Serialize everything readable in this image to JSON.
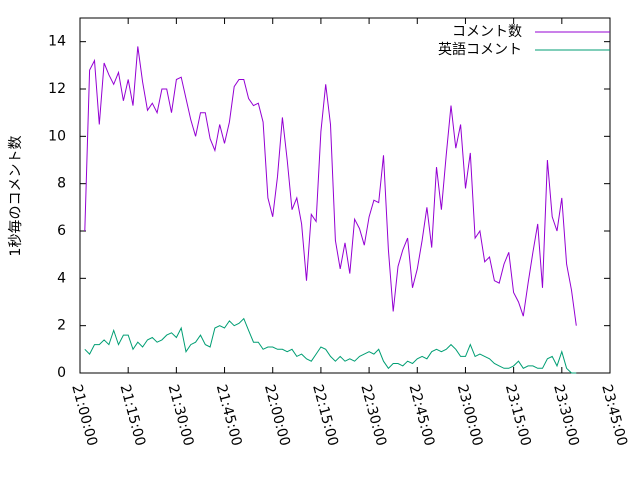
{
  "chart_data": {
    "type": "line",
    "ylabel": "1秒毎のコメント数",
    "x": [
      "21:01:30",
      "21:03:00",
      "21:04:30",
      "21:06:00",
      "21:07:30",
      "21:09:00",
      "21:10:30",
      "21:12:00",
      "21:13:30",
      "21:15:00",
      "21:16:30",
      "21:18:00",
      "21:19:30",
      "21:21:00",
      "21:22:30",
      "21:24:00",
      "21:25:30",
      "21:27:00",
      "21:28:30",
      "21:30:00",
      "21:31:30",
      "21:33:00",
      "21:34:30",
      "21:36:00",
      "21:37:30",
      "21:39:00",
      "21:40:30",
      "21:42:00",
      "21:43:30",
      "21:45:00",
      "21:46:30",
      "21:48:00",
      "21:49:30",
      "21:51:00",
      "21:52:30",
      "21:54:00",
      "21:55:30",
      "21:57:00",
      "21:58:30",
      "22:00:00",
      "22:01:30",
      "22:03:00",
      "22:04:30",
      "22:06:00",
      "22:07:30",
      "22:09:00",
      "22:10:30",
      "22:12:00",
      "22:13:30",
      "22:15:00",
      "22:16:30",
      "22:18:00",
      "22:19:30",
      "22:21:00",
      "22:22:30",
      "22:24:00",
      "22:25:30",
      "22:27:00",
      "22:28:30",
      "22:30:00",
      "22:31:30",
      "22:33:00",
      "22:34:30",
      "22:36:00",
      "22:37:30",
      "22:39:00",
      "22:40:30",
      "22:42:00",
      "22:43:30",
      "22:45:00",
      "22:46:30",
      "22:48:00",
      "22:49:30",
      "22:51:00",
      "22:52:30",
      "22:54:00",
      "22:55:30",
      "22:57:00",
      "22:58:30",
      "23:00:00",
      "23:01:30",
      "23:03:00",
      "23:04:30",
      "23:06:00",
      "23:07:30",
      "23:09:00",
      "23:10:30",
      "23:12:00",
      "23:13:30",
      "23:15:00",
      "23:16:30",
      "23:18:00",
      "23:19:30",
      "23:21:00",
      "23:22:30",
      "23:24:00",
      "23:25:30",
      "23:27:00",
      "23:28:30",
      "23:30:00",
      "23:31:30",
      "23:33:00",
      "23:34:30"
    ],
    "series": [
      {
        "name": "コメント数",
        "color": "#9400d3",
        "values": [
          6.0,
          12.8,
          13.2,
          10.5,
          13.1,
          12.6,
          12.2,
          12.7,
          11.5,
          12.4,
          11.3,
          13.8,
          12.3,
          11.1,
          11.4,
          11.0,
          12.0,
          12.0,
          11.0,
          12.4,
          12.5,
          11.6,
          10.7,
          10.0,
          11.0,
          11.0,
          9.9,
          9.4,
          10.5,
          9.7,
          10.6,
          12.1,
          12.4,
          12.4,
          11.6,
          11.3,
          11.4,
          10.6,
          7.4,
          6.6,
          8.3,
          10.8,
          9.0,
          6.9,
          7.4,
          6.3,
          3.9,
          6.7,
          6.4,
          10.2,
          12.2,
          10.5,
          5.6,
          4.4,
          5.5,
          4.2,
          6.5,
          6.1,
          5.4,
          6.6,
          7.3,
          7.2,
          9.2,
          5.2,
          2.6,
          4.5,
          5.2,
          5.7,
          3.6,
          4.4,
          5.6,
          7.0,
          5.3,
          8.7,
          6.9,
          9.2,
          11.3,
          9.5,
          10.5,
          7.8,
          9.3,
          5.7,
          6.0,
          4.7,
          4.9,
          3.9,
          3.8,
          4.6,
          5.1,
          3.4,
          3.0,
          2.4,
          3.8,
          5.1,
          6.3,
          3.6,
          9.0,
          6.6,
          6.0,
          7.4,
          4.6,
          3.5,
          2.0
        ]
      },
      {
        "name": "英語コメント",
        "color": "#009e73",
        "values": [
          1.0,
          0.8,
          1.2,
          1.2,
          1.4,
          1.2,
          1.8,
          1.2,
          1.6,
          1.6,
          1.0,
          1.3,
          1.1,
          1.4,
          1.5,
          1.3,
          1.4,
          1.6,
          1.7,
          1.5,
          1.9,
          0.9,
          1.2,
          1.3,
          1.6,
          1.2,
          1.1,
          1.9,
          2.0,
          1.9,
          2.2,
          2.0,
          2.1,
          2.3,
          1.8,
          1.3,
          1.3,
          1.0,
          1.1,
          1.1,
          1.0,
          1.0,
          0.9,
          1.0,
          0.7,
          0.8,
          0.6,
          0.5,
          0.8,
          1.1,
          1.0,
          0.7,
          0.5,
          0.7,
          0.5,
          0.6,
          0.5,
          0.7,
          0.8,
          0.9,
          0.8,
          1.0,
          0.5,
          0.2,
          0.4,
          0.4,
          0.3,
          0.5,
          0.4,
          0.6,
          0.7,
          0.6,
          0.9,
          1.0,
          0.9,
          1.0,
          1.2,
          1.0,
          0.7,
          0.7,
          1.2,
          0.7,
          0.8,
          0.7,
          0.6,
          0.4,
          0.3,
          0.2,
          0.2,
          0.3,
          0.5,
          0.2,
          0.3,
          0.3,
          0.2,
          0.2,
          0.6,
          0.7,
          0.3,
          0.9,
          0.2,
          0.0,
          0.0
        ]
      }
    ],
    "xlim": [
      "21:00:00",
      "23:45:00"
    ],
    "xticks": [
      "21:00:00",
      "21:15:00",
      "21:30:00",
      "21:45:00",
      "22:00:00",
      "22:15:00",
      "22:30:00",
      "22:45:00",
      "23:00:00",
      "23:15:00",
      "23:30:00",
      "23:45:00"
    ],
    "ylim": [
      0,
      15
    ],
    "yticks": [
      0,
      2,
      4,
      6,
      8,
      10,
      12,
      14
    ],
    "legend": "top-right"
  }
}
